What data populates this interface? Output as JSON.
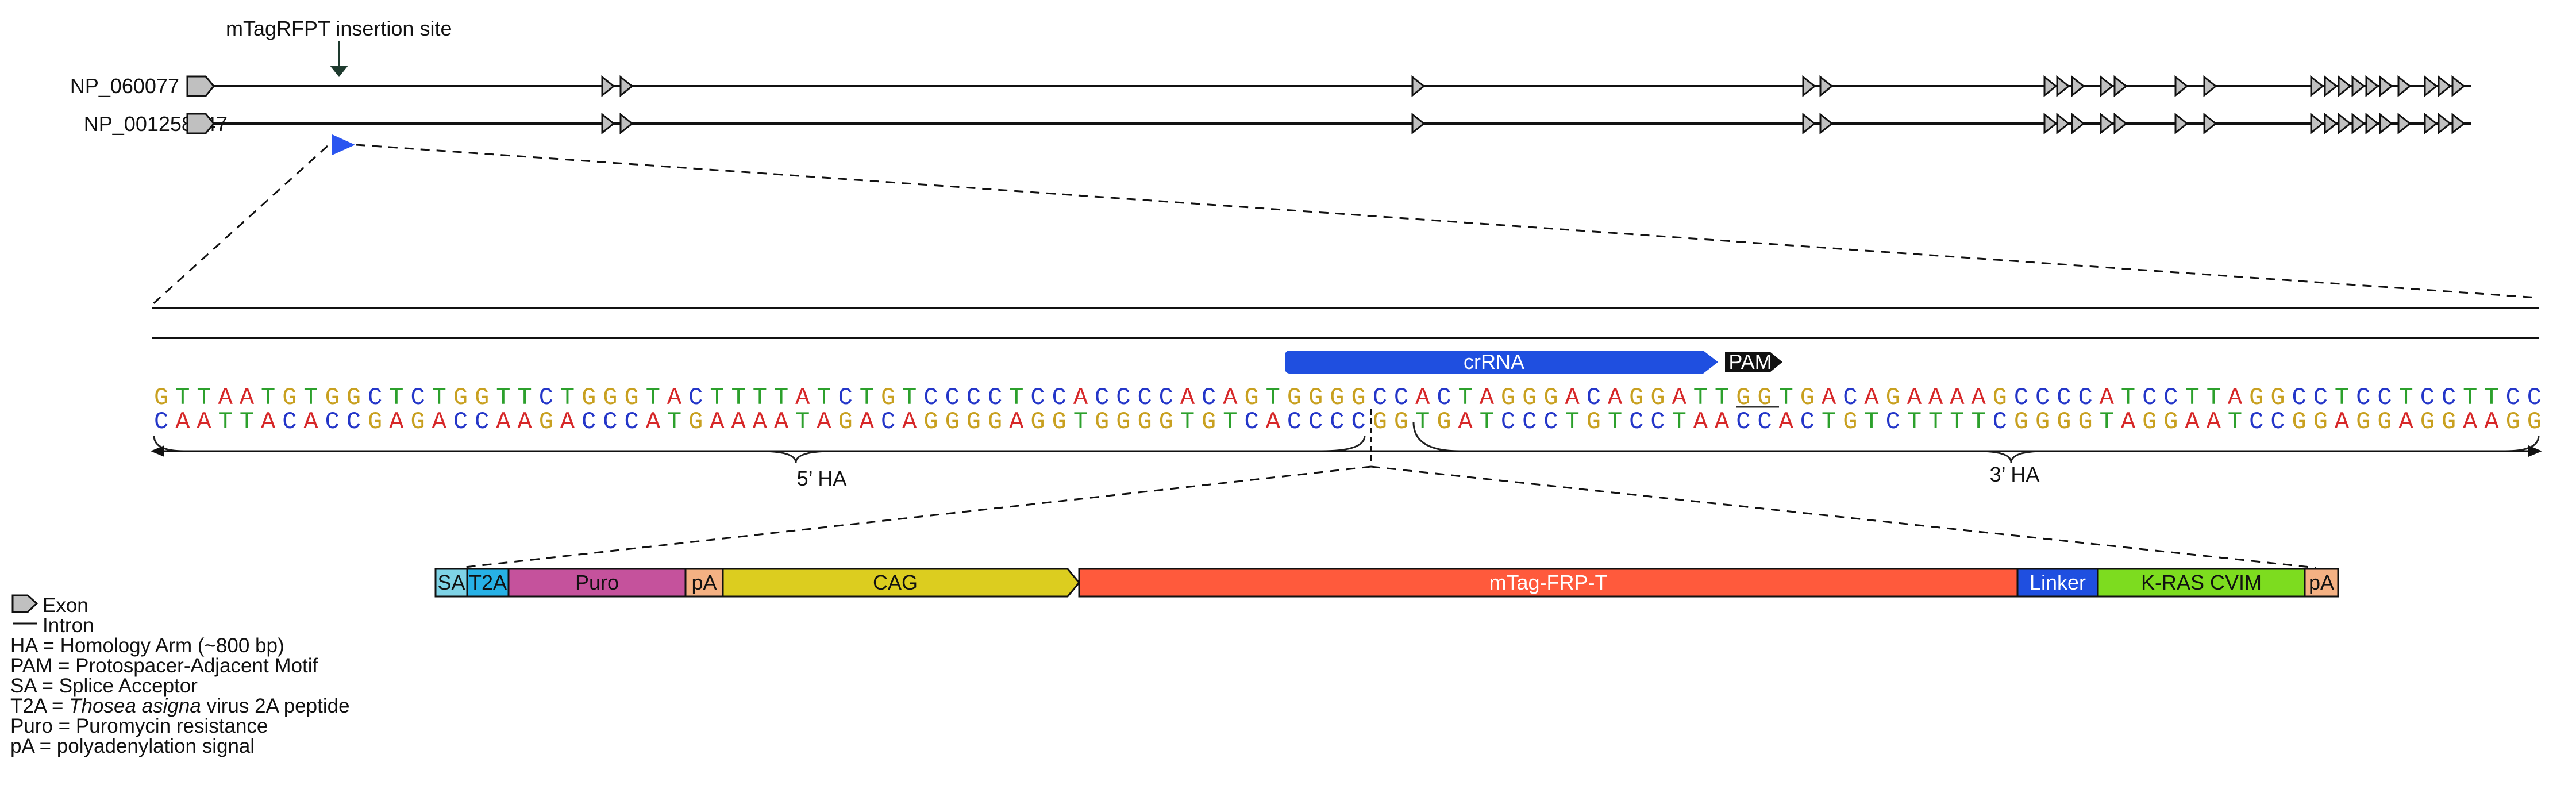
{
  "insertion_label": "mTagRFPT insertion site",
  "transcripts": [
    {
      "name": "NP_060077"
    },
    {
      "name": "NP_001258547"
    }
  ],
  "guide": {
    "crRNA": "crRNA",
    "pam": "PAM"
  },
  "sequence": {
    "top": "GTTAATGTGGCTCTGGTTCTGGGTACTTTTATCTGTCCCCTCCACCCCACAGTGGGGCCACTAGGGACAGGATTGGTGACAGAAAAGCCCCATCCTTAGGCCTCCTCCTTCC",
    "bottom": "CAATTACACCGAGACCAAGACCCATGAAAATAGACAGGGGAGGTGGGGTGTCACCCCGGTGATCCCTGTCCTAACCACTGTCTTTTCGGGGTAGGAATCCGGAGGAGGAAGG"
  },
  "homology_arms": {
    "left": "5’ HA",
    "right": "3’ HA"
  },
  "cassette": [
    {
      "label": "SA",
      "color": "#7fd3e6"
    },
    {
      "label": "T2A",
      "color": "#27b1e6"
    },
    {
      "label": "Puro",
      "color": "#c5529c"
    },
    {
      "label": "pA",
      "color": "#f4b183"
    },
    {
      "label": "CAG",
      "color": "#dccd1f"
    },
    {
      "label": "mTag-FRP-T",
      "color": "#ff5a3c"
    },
    {
      "label": "Linker",
      "color": "#1f4fe0"
    },
    {
      "label": "K-RAS CVIM",
      "color": "#7ddc1f"
    },
    {
      "label": "pA",
      "color": "#f4b183"
    }
  ],
  "legend": {
    "exon": "Exon",
    "intron": "Intron",
    "items": [
      "HA = Homology Arm (~800 bp)",
      "PAM = Protospacer-Adjacent Motif",
      "SA = Splice Acceptor"
    ],
    "t2a_prefix": "T2A = ",
    "t2a_italic": "Thosea asigna",
    "t2a_suffix": " virus 2A peptide",
    "items2": [
      "Puro = Puromycin resistance",
      "pA = polyadenylation signal"
    ]
  },
  "colors": {
    "A": "#d62728",
    "C": "#2436c8",
    "G": "#c8a020",
    "T": "#2ca02c",
    "exon_fill": "#c0c0c0",
    "crRNA": "#1f4fe0",
    "insertion_marker": "#2a55f0"
  }
}
